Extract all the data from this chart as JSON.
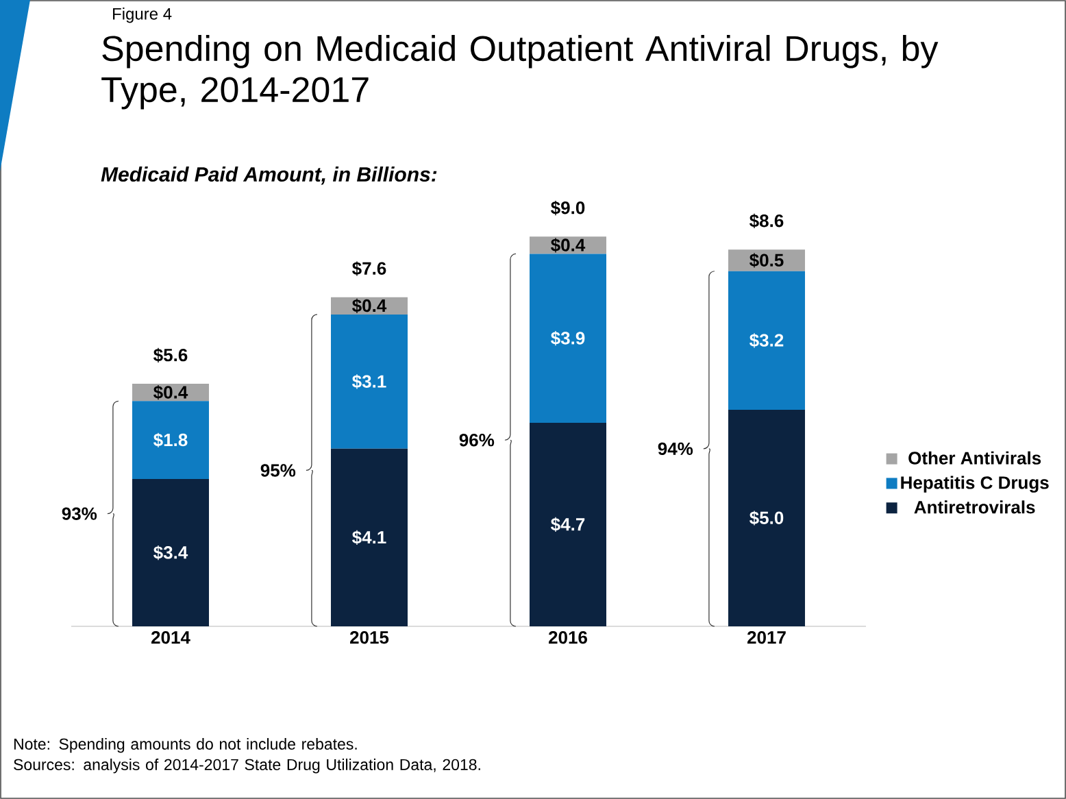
{
  "chart_data": {
    "type": "bar",
    "stacked": true,
    "title": "Spending on Medicaid Outpatient Antiviral Drugs, by Type, 2014-2017",
    "subtitle": "Medicaid Paid Amount, in Billions:",
    "categories": [
      "2014",
      "2015",
      "2016",
      "2017"
    ],
    "series": [
      {
        "name": "Antiretrovirals",
        "color": "#0c2340",
        "values": [
          3.4,
          4.1,
          4.7,
          5.0
        ],
        "value_labels": [
          "$3.4",
          "$4.1",
          "$4.7",
          "$5.0"
        ]
      },
      {
        "name": "Hepatitis C Drugs",
        "color": "#0e7cc2",
        "values": [
          1.8,
          3.1,
          3.9,
          3.2
        ],
        "value_labels": [
          "$1.8",
          "$3.1",
          "$3.9",
          "$3.2"
        ]
      },
      {
        "name": "Other Antivirals",
        "color": "#a5a5a5",
        "values": [
          0.4,
          0.4,
          0.4,
          0.5
        ],
        "value_labels": [
          "$0.4",
          "$0.4",
          "$0.4",
          "$0.5"
        ]
      }
    ],
    "totals": [
      "$5.6",
      "$7.6",
      "$9.0",
      "$8.6"
    ],
    "legend": "right",
    "annotations": [
      "Figure 4",
      "93%",
      "95%",
      "96%",
      "94%",
      "Note: Spending amounts do not include rebates.",
      "Sources: analysis of 2014-2017 State Drug Utilization Data, 2018."
    ]
  }
}
